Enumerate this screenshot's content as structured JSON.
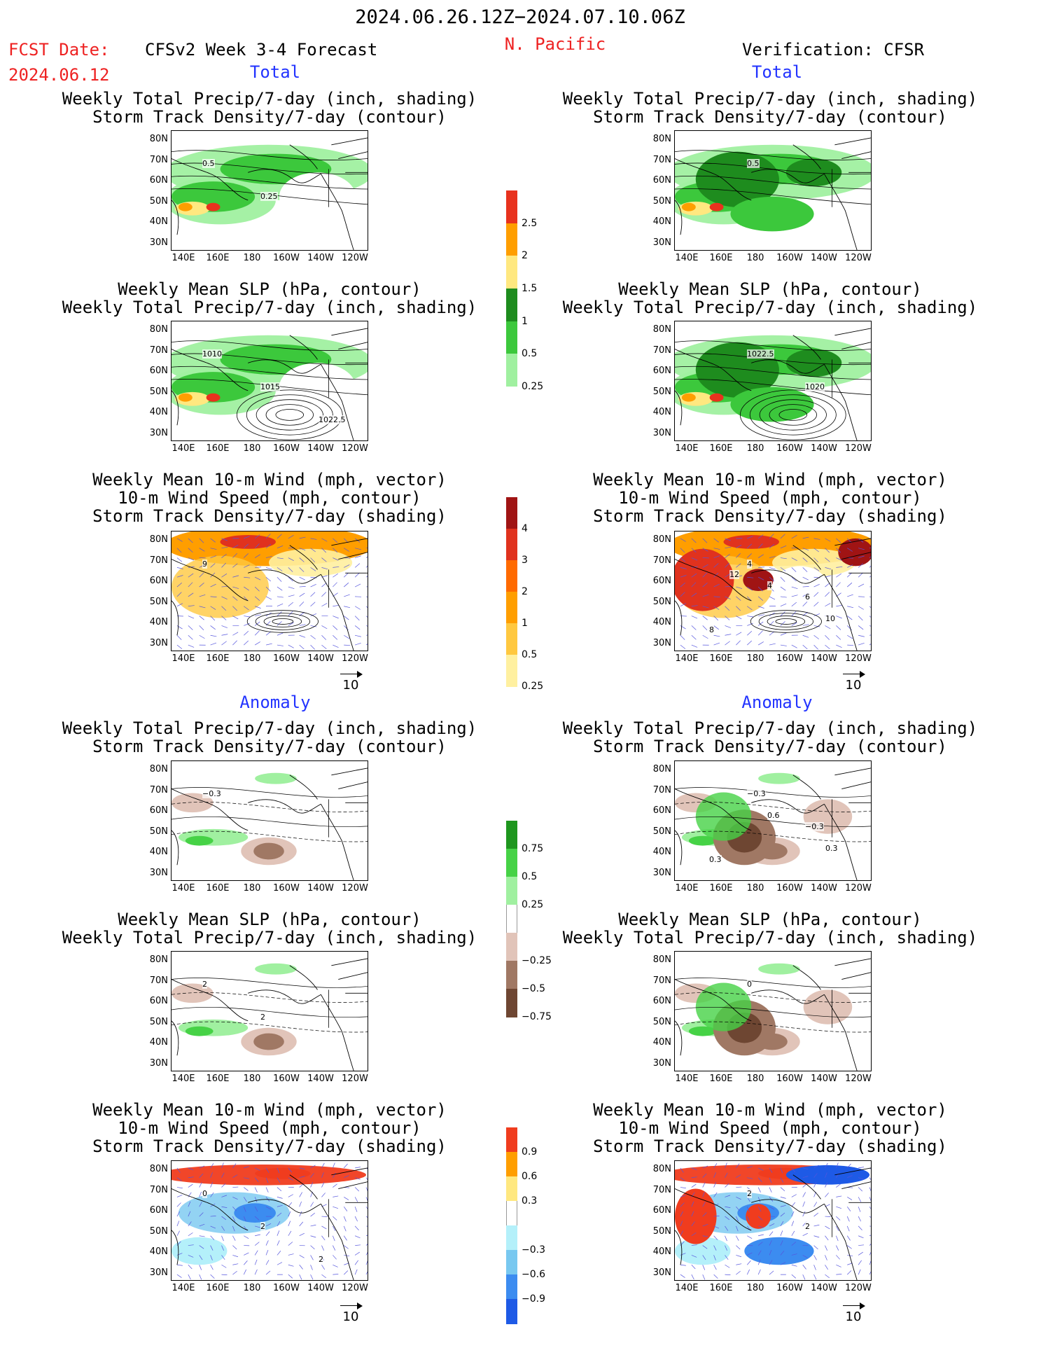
{
  "header": {
    "period": "2024.06.26.12Z−2024.07.10.06Z",
    "fcst_label": "FCST Date:",
    "fcst_date": "2024.06.12",
    "model": "CFSv2 Week 3-4 Forecast",
    "region": "N. Pacific",
    "verification": "Verification: CFSR"
  },
  "sections": {
    "total": "Total",
    "anomaly": "Anomaly"
  },
  "titles": {
    "precip_storm_1": "Weekly Total Precip/7-day (inch, shading)",
    "precip_storm_2": "Storm Track Density/7-day (contour)",
    "slp_1": "Weekly Mean SLP (hPa, contour)",
    "slp_2": "Weekly Total Precip/7-day (inch, shading)",
    "wind_1": "Weekly Mean 10-m Wind (mph, vector)",
    "wind_2": "10-m Wind Speed (mph, contour)",
    "wind_3": "Storm Track Density/7-day (shading)"
  },
  "axes": {
    "lat": [
      "80N",
      "70N",
      "60N",
      "50N",
      "40N",
      "30N"
    ],
    "lon": [
      "140E",
      "160E",
      "180",
      "160W",
      "140W",
      "120W"
    ]
  },
  "vector_ref": "10",
  "colorbars": {
    "precip_total": {
      "labels": [
        "2.5",
        "2",
        "1.5",
        "1",
        "0.5",
        "0.25"
      ],
      "colors": [
        "#e8321e",
        "#ff9e00",
        "#ffe880",
        "#1e8c1e",
        "#3cc83c",
        "#a0f0a0"
      ]
    },
    "storm_total": {
      "labels": [
        "4",
        "3",
        "2",
        "1",
        "0.5",
        "0.25"
      ],
      "colors": [
        "#a01414",
        "#e0321e",
        "#ff6a00",
        "#ff9e00",
        "#ffc840",
        "#fff0a0"
      ]
    },
    "precip_anom": {
      "labels": [
        "0.75",
        "0.5",
        "0.25",
        "−0.25",
        "−0.5",
        "−0.75"
      ],
      "colors": [
        "#1e961e",
        "#46d246",
        "#a0f0a0",
        "#ffffff",
        "#e1c4b9",
        "#a07864",
        "#6e4632"
      ]
    },
    "storm_anom": {
      "labels": [
        "0.9",
        "0.6",
        "0.3",
        "−0.3",
        "−0.6",
        "−0.9"
      ],
      "colors": [
        "#f03c1e",
        "#ff9e00",
        "#ffe880",
        "#ffffff",
        "#b4f0fa",
        "#78c8f0",
        "#3c8cf0",
        "#1e5ae6"
      ]
    }
  },
  "panel_labels": {
    "fc_precip": [
      "0.5",
      "0.25"
    ],
    "vf_precip": [
      "0.5"
    ],
    "fc_slp": [
      "1010",
      "1015",
      "1022.5"
    ],
    "vf_slp": [
      "1022.5",
      "1020"
    ],
    "fc_wind": [
      "9"
    ],
    "vf_wind": [
      "4",
      "6",
      "8",
      "4",
      "10",
      "12"
    ],
    "fc_aprecip": [
      "−0.3"
    ],
    "vf_aprecip": [
      "−0.3",
      "−0.3",
      "0.3",
      "0.6",
      "0.3"
    ],
    "fc_aslp": [
      "2",
      "2"
    ],
    "vf_aslp": [
      "0"
    ],
    "fc_awind": [
      "0",
      "2",
      "2"
    ],
    "vf_awind": [
      "2",
      "2"
    ]
  }
}
